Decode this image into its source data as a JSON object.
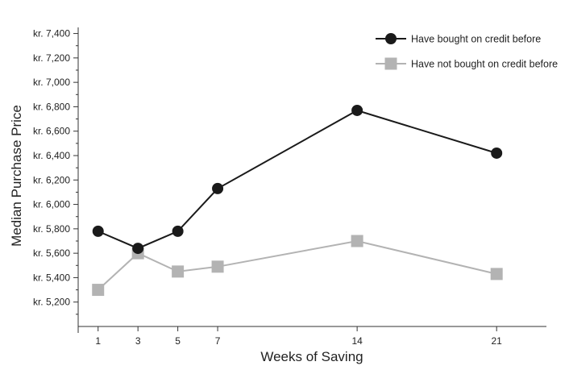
{
  "chart_data": {
    "type": "line",
    "title": "",
    "xlabel": "Weeks of Saving",
    "ylabel": "Median Purchase Price",
    "x": [
      1,
      3,
      5,
      7,
      14,
      21
    ],
    "xlim": [
      0,
      23.5
    ],
    "ylim": [
      5000,
      7450
    ],
    "y_ticks": [
      5200,
      5400,
      5600,
      5800,
      6000,
      6200,
      6400,
      6600,
      6800,
      7000,
      7200,
      7400
    ],
    "y_tick_labels": [
      "kr. 5,200",
      "kr. 5,400",
      "kr. 5,600",
      "kr. 5,800",
      "kr. 6,000",
      "kr. 6,200",
      "kr. 6,400",
      "kr. 6,600",
      "kr. 6,800",
      "kr. 7,000",
      "kr. 7,200",
      "kr. 7,400"
    ],
    "x_tick_labels": [
      "1",
      "3",
      "5",
      "7",
      "14",
      "21"
    ],
    "grid": false,
    "legend_position": "top-right",
    "series": [
      {
        "name": "Have bought on credit before",
        "marker": "circle",
        "color": "#1a1a1a",
        "values": [
          5780,
          5640,
          5780,
          6130,
          6770,
          6420
        ]
      },
      {
        "name": "Have not bought on credit before",
        "marker": "square",
        "color": "#b3b3b3",
        "values": [
          5300,
          5600,
          5450,
          5490,
          5700,
          5430
        ]
      }
    ]
  }
}
